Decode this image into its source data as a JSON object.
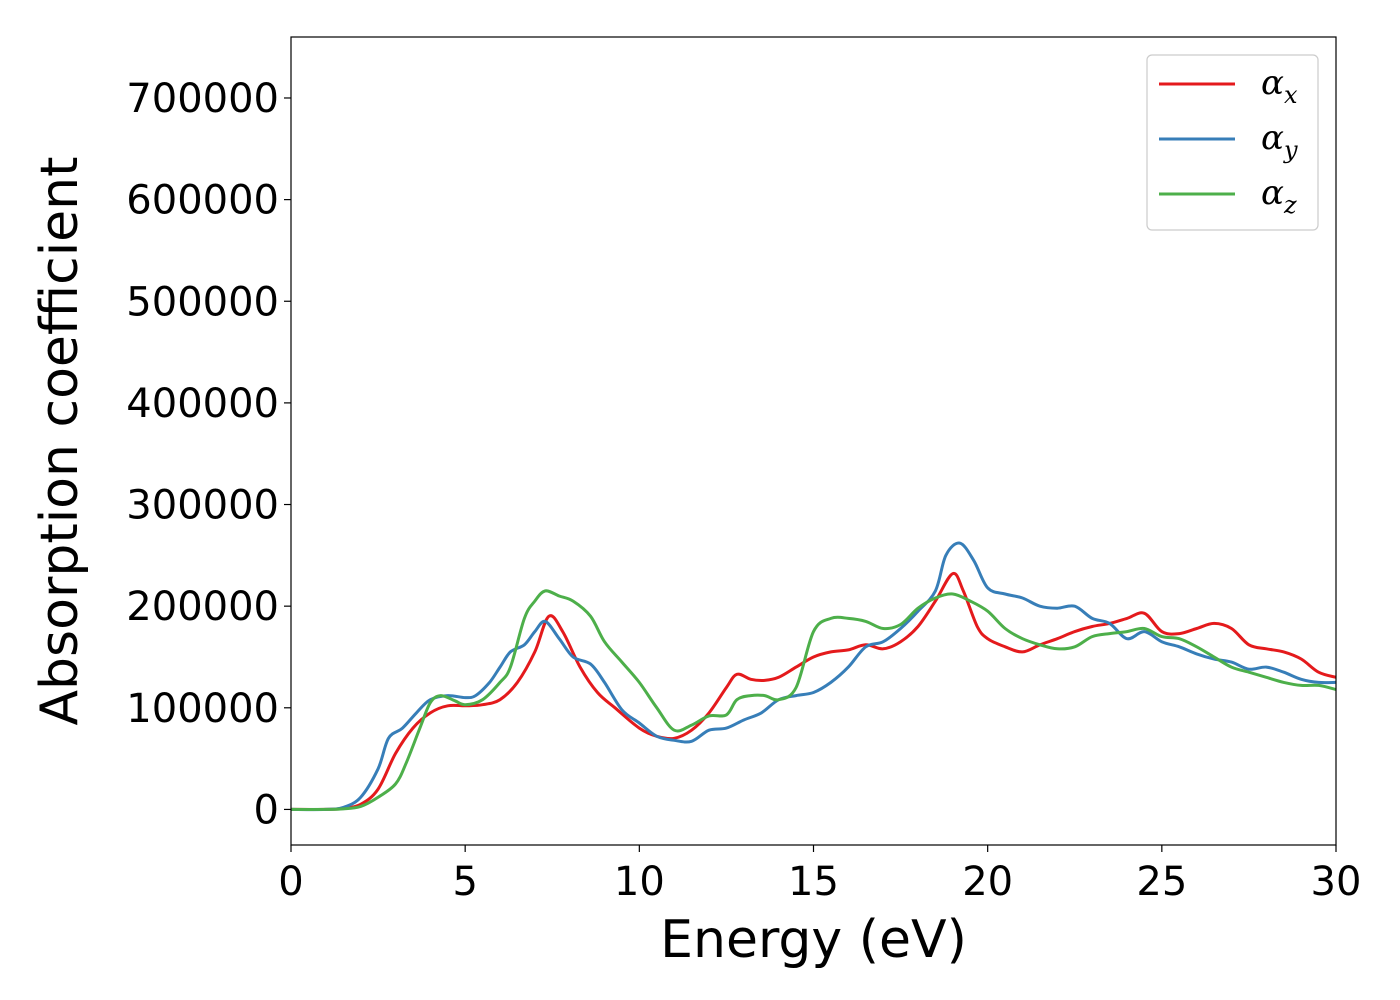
{
  "chart_data": {
    "type": "line",
    "xlabel": "Energy (eV)",
    "ylabel": "Absorption coefficient",
    "xlim": [
      0,
      30
    ],
    "ylim": [
      -35000,
      760000
    ],
    "xticks": [
      0,
      5,
      10,
      15,
      20,
      25,
      30
    ],
    "xtick_labels": [
      "0",
      "5",
      "10",
      "15",
      "20",
      "25",
      "30"
    ],
    "yticks": [
      0,
      100000,
      200000,
      300000,
      400000,
      500000,
      600000,
      700000
    ],
    "ytick_labels": [
      "0",
      "100000",
      "200000",
      "300000",
      "400000",
      "500000",
      "600000",
      "700000"
    ],
    "grid": false,
    "legend_position": "top-right",
    "series": [
      {
        "name": "α",
        "subscript": "x",
        "color": "#e41a1c",
        "points": [
          [
            0,
            0
          ],
          [
            1,
            0
          ],
          [
            1.5,
            1000
          ],
          [
            2,
            5000
          ],
          [
            2.5,
            20000
          ],
          [
            3,
            55000
          ],
          [
            3.5,
            80000
          ],
          [
            4,
            95000
          ],
          [
            4.5,
            102000
          ],
          [
            5,
            102000
          ],
          [
            5.5,
            103000
          ],
          [
            6,
            108000
          ],
          [
            6.5,
            125000
          ],
          [
            7,
            155000
          ],
          [
            7.4,
            190000
          ],
          [
            7.8,
            175000
          ],
          [
            8.3,
            140000
          ],
          [
            8.8,
            115000
          ],
          [
            9.3,
            100000
          ],
          [
            10,
            80000
          ],
          [
            10.5,
            72000
          ],
          [
            11,
            70000
          ],
          [
            11.5,
            78000
          ],
          [
            12,
            95000
          ],
          [
            12.5,
            120000
          ],
          [
            12.8,
            133000
          ],
          [
            13.2,
            128000
          ],
          [
            13.6,
            127000
          ],
          [
            14,
            130000
          ],
          [
            14.5,
            140000
          ],
          [
            15,
            150000
          ],
          [
            15.5,
            155000
          ],
          [
            16,
            157000
          ],
          [
            16.5,
            162000
          ],
          [
            17,
            158000
          ],
          [
            17.5,
            165000
          ],
          [
            18,
            180000
          ],
          [
            18.5,
            205000
          ],
          [
            19,
            232000
          ],
          [
            19.3,
            215000
          ],
          [
            19.7,
            180000
          ],
          [
            20,
            168000
          ],
          [
            20.5,
            160000
          ],
          [
            21,
            155000
          ],
          [
            21.5,
            162000
          ],
          [
            22,
            168000
          ],
          [
            22.5,
            175000
          ],
          [
            23,
            180000
          ],
          [
            23.5,
            183000
          ],
          [
            24,
            188000
          ],
          [
            24.5,
            193000
          ],
          [
            25,
            175000
          ],
          [
            25.5,
            173000
          ],
          [
            26,
            178000
          ],
          [
            26.5,
            183000
          ],
          [
            27,
            178000
          ],
          [
            27.5,
            162000
          ],
          [
            28,
            158000
          ],
          [
            28.5,
            155000
          ],
          [
            29,
            148000
          ],
          [
            29.5,
            135000
          ],
          [
            30,
            130000
          ]
        ]
      },
      {
        "name": "α",
        "subscript": "y",
        "color": "#377eb8",
        "points": [
          [
            0,
            0
          ],
          [
            1,
            0
          ],
          [
            1.5,
            2000
          ],
          [
            2,
            12000
          ],
          [
            2.5,
            40000
          ],
          [
            2.8,
            70000
          ],
          [
            3.2,
            80000
          ],
          [
            3.6,
            95000
          ],
          [
            4,
            108000
          ],
          [
            4.5,
            112000
          ],
          [
            5,
            110000
          ],
          [
            5.3,
            112000
          ],
          [
            5.7,
            125000
          ],
          [
            6,
            140000
          ],
          [
            6.3,
            155000
          ],
          [
            6.7,
            162000
          ],
          [
            7,
            175000
          ],
          [
            7.3,
            185000
          ],
          [
            7.7,
            168000
          ],
          [
            8.1,
            150000
          ],
          [
            8.6,
            143000
          ],
          [
            9,
            125000
          ],
          [
            9.5,
            98000
          ],
          [
            10,
            85000
          ],
          [
            10.5,
            72000
          ],
          [
            11,
            68000
          ],
          [
            11.5,
            67000
          ],
          [
            12,
            78000
          ],
          [
            12.5,
            80000
          ],
          [
            13,
            88000
          ],
          [
            13.5,
            95000
          ],
          [
            14,
            108000
          ],
          [
            14.5,
            112000
          ],
          [
            15,
            115000
          ],
          [
            15.5,
            125000
          ],
          [
            16,
            140000
          ],
          [
            16.5,
            160000
          ],
          [
            17,
            165000
          ],
          [
            17.5,
            178000
          ],
          [
            18,
            195000
          ],
          [
            18.5,
            215000
          ],
          [
            18.8,
            250000
          ],
          [
            19.2,
            262000
          ],
          [
            19.6,
            245000
          ],
          [
            20,
            218000
          ],
          [
            20.5,
            212000
          ],
          [
            21,
            208000
          ],
          [
            21.5,
            200000
          ],
          [
            22,
            198000
          ],
          [
            22.5,
            200000
          ],
          [
            23,
            188000
          ],
          [
            23.5,
            183000
          ],
          [
            24,
            168000
          ],
          [
            24.5,
            175000
          ],
          [
            25,
            165000
          ],
          [
            25.5,
            160000
          ],
          [
            26,
            153000
          ],
          [
            26.5,
            148000
          ],
          [
            27,
            145000
          ],
          [
            27.5,
            138000
          ],
          [
            28,
            140000
          ],
          [
            28.5,
            135000
          ],
          [
            29,
            128000
          ],
          [
            29.5,
            125000
          ],
          [
            30,
            125000
          ]
        ]
      },
      {
        "name": "α",
        "subscript": "z",
        "color": "#4daf4a",
        "points": [
          [
            0,
            0
          ],
          [
            1,
            0
          ],
          [
            1.5,
            500
          ],
          [
            2,
            3000
          ],
          [
            2.5,
            12000
          ],
          [
            3,
            25000
          ],
          [
            3.3,
            45000
          ],
          [
            3.7,
            80000
          ],
          [
            4,
            105000
          ],
          [
            4.3,
            112000
          ],
          [
            4.7,
            107000
          ],
          [
            5,
            103000
          ],
          [
            5.5,
            108000
          ],
          [
            6,
            125000
          ],
          [
            6.3,
            140000
          ],
          [
            6.7,
            188000
          ],
          [
            7,
            205000
          ],
          [
            7.3,
            215000
          ],
          [
            7.7,
            210000
          ],
          [
            8.1,
            205000
          ],
          [
            8.6,
            190000
          ],
          [
            9,
            165000
          ],
          [
            9.5,
            145000
          ],
          [
            10,
            125000
          ],
          [
            10.5,
            100000
          ],
          [
            11,
            78000
          ],
          [
            11.5,
            83000
          ],
          [
            12,
            92000
          ],
          [
            12.5,
            93000
          ],
          [
            12.8,
            108000
          ],
          [
            13.2,
            112000
          ],
          [
            13.6,
            112000
          ],
          [
            14,
            108000
          ],
          [
            14.5,
            120000
          ],
          [
            15,
            175000
          ],
          [
            15.5,
            188000
          ],
          [
            16,
            188000
          ],
          [
            16.5,
            185000
          ],
          [
            17,
            178000
          ],
          [
            17.5,
            182000
          ],
          [
            18,
            198000
          ],
          [
            18.5,
            208000
          ],
          [
            19,
            212000
          ],
          [
            19.5,
            205000
          ],
          [
            20,
            195000
          ],
          [
            20.5,
            178000
          ],
          [
            21,
            168000
          ],
          [
            21.5,
            162000
          ],
          [
            22,
            158000
          ],
          [
            22.5,
            160000
          ],
          [
            23,
            170000
          ],
          [
            23.5,
            173000
          ],
          [
            24,
            175000
          ],
          [
            24.5,
            178000
          ],
          [
            25,
            170000
          ],
          [
            25.5,
            168000
          ],
          [
            26,
            160000
          ],
          [
            26.5,
            150000
          ],
          [
            27,
            140000
          ],
          [
            27.5,
            135000
          ],
          [
            28,
            130000
          ],
          [
            28.5,
            125000
          ],
          [
            29,
            122000
          ],
          [
            29.5,
            122000
          ],
          [
            30,
            118000
          ]
        ]
      }
    ]
  }
}
